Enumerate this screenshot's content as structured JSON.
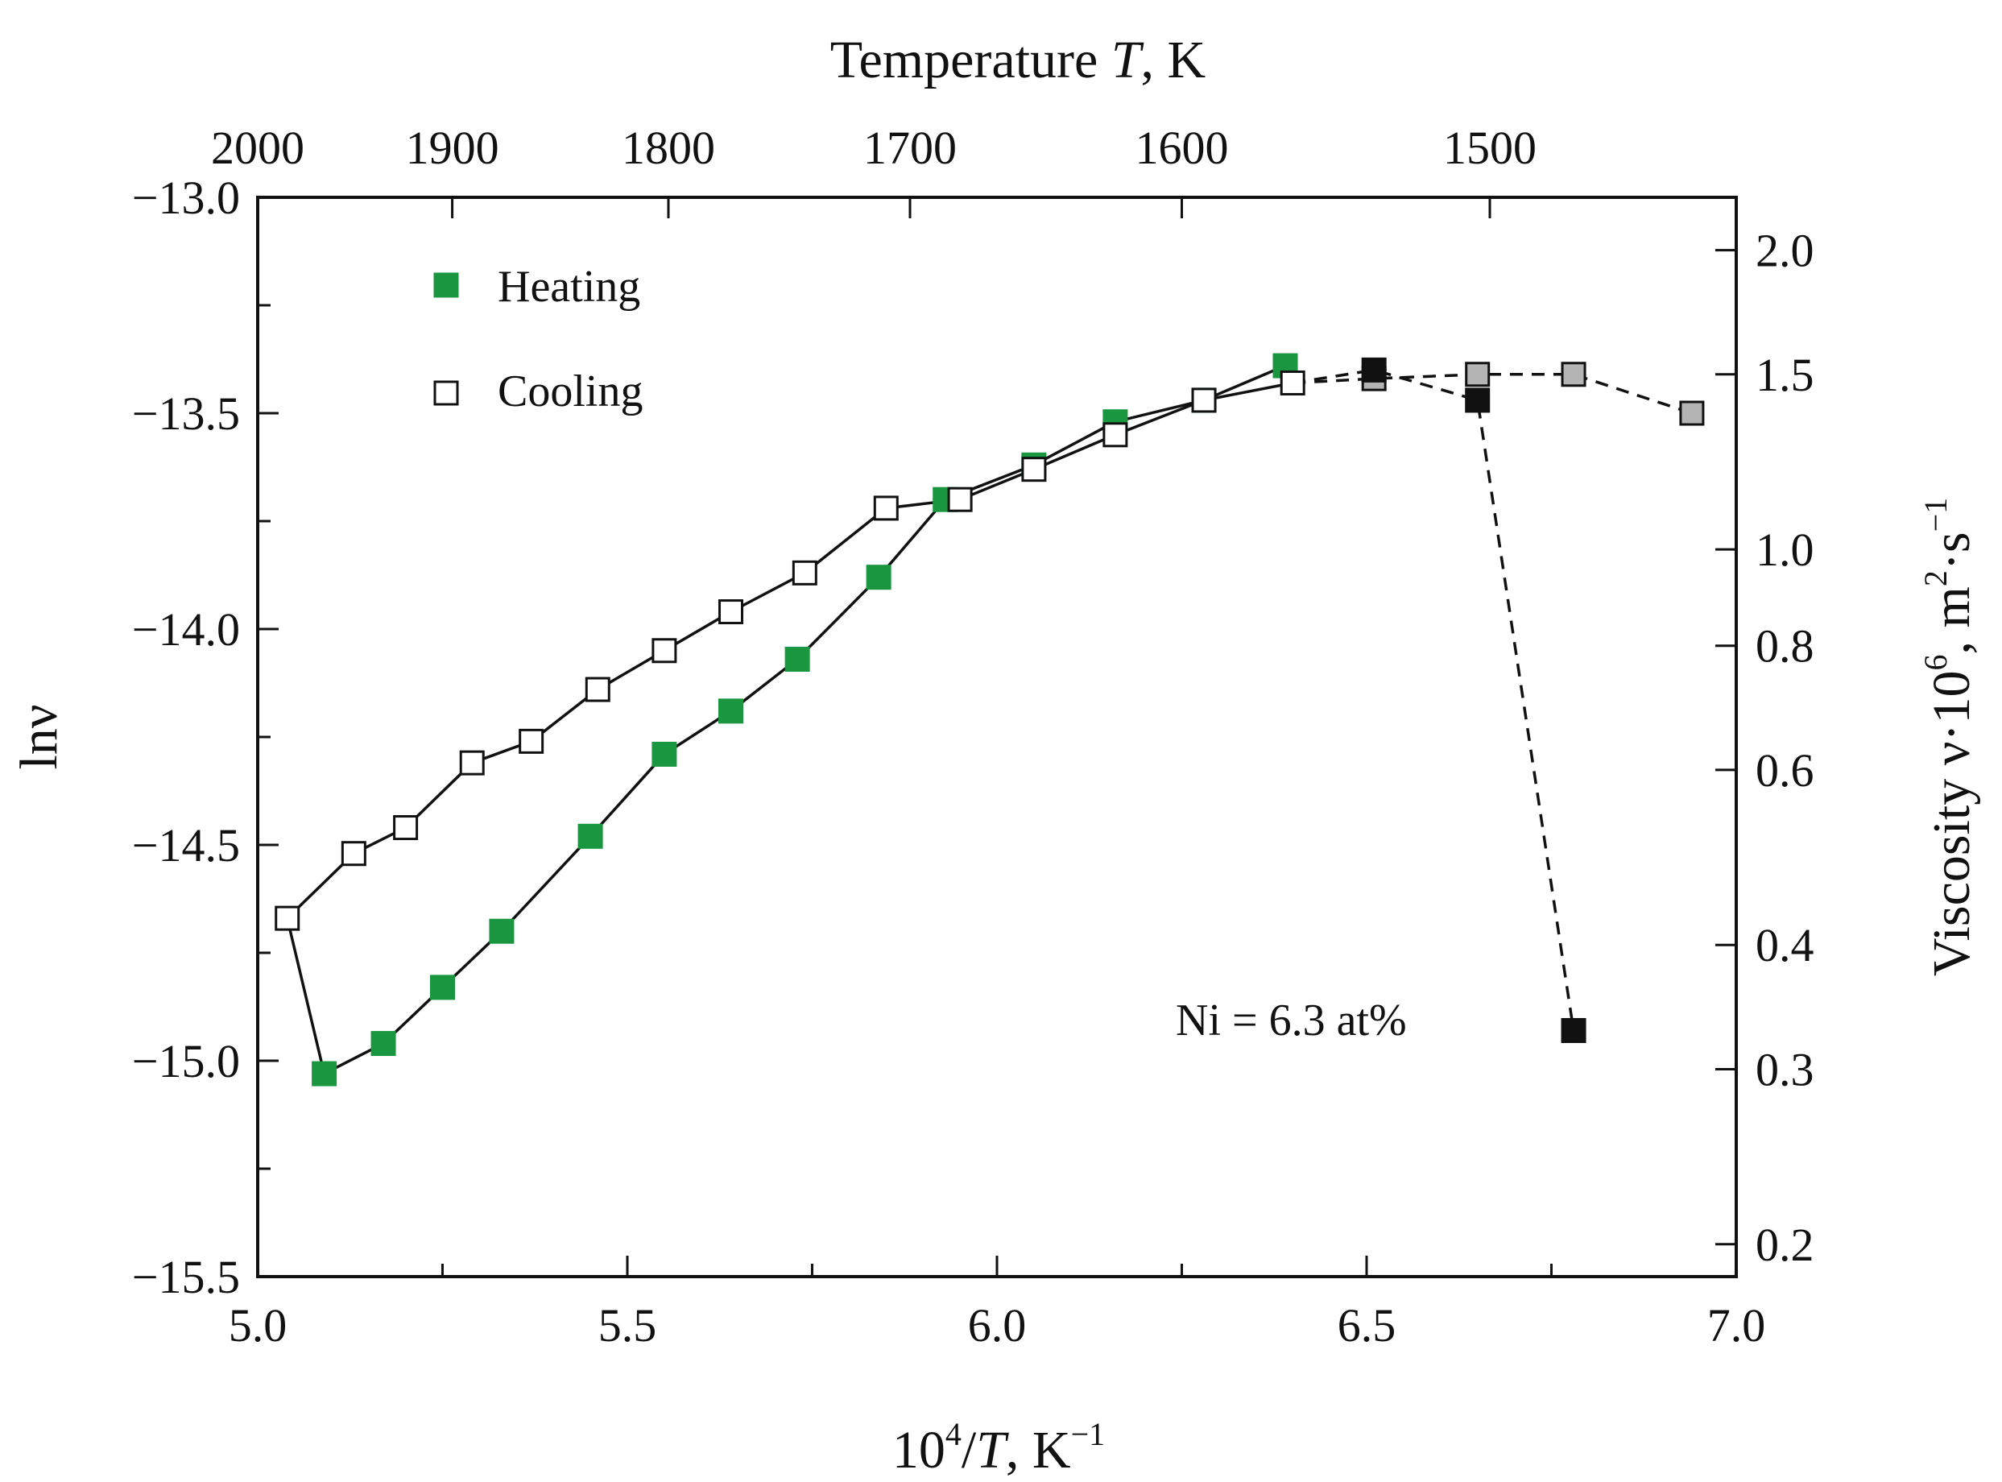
{
  "chart_data": {
    "type": "scatter",
    "title": "",
    "xlabel": {
      "base": "10",
      "sup": "4",
      "mid": "/",
      "italic": "T",
      "post": ", K",
      "sup2": "−1"
    },
    "ylabel": "lnν",
    "top_xlabel": {
      "pre": "Temperature ",
      "italic": "T",
      "post": ", K"
    },
    "right_ylabel": {
      "pre": "Viscosity ν·10",
      "sup1": "6",
      "mid": ", m",
      "sup2": "2",
      "mid2": "·s",
      "sup3": "−1"
    },
    "xlim": [
      5.0,
      7.0
    ],
    "ylim": [
      -15.5,
      -13.0
    ],
    "x_ticks": [
      "5.0",
      "5.5",
      "6.0",
      "6.5",
      "7.0"
    ],
    "y_ticks": [
      "−13.0",
      "−13.5",
      "−14.0",
      "−14.5",
      "−15.0",
      "−15.5"
    ],
    "top_ticks": [
      "2000",
      "1900",
      "1800",
      "1700",
      "1600",
      "1500"
    ],
    "right_ticks": [
      "2.0",
      "1.5",
      "1.0",
      "0.8",
      "0.6",
      "0.4",
      "0.3",
      "0.2"
    ],
    "grid": false,
    "legend_position": "top-left",
    "annotation": "Ni = 6.3 at%",
    "colors": {
      "heating": "#1a9641",
      "cooling": "#ffffff",
      "black": "#111111",
      "gray": "#b4b4b4"
    },
    "series": [
      {
        "name": "Heating",
        "marker": "filled-green",
        "x": [
          5.09,
          5.17,
          5.25,
          5.33,
          5.45,
          5.55,
          5.64,
          5.73,
          5.84,
          5.93,
          6.05,
          6.16,
          6.28,
          6.39
        ],
        "y": [
          -15.03,
          -14.96,
          -14.83,
          -14.7,
          -14.48,
          -14.29,
          -14.19,
          -14.07,
          -13.88,
          -13.7,
          -13.62,
          -13.52,
          -13.47,
          -13.39
        ]
      },
      {
        "name": "Cooling",
        "marker": "open",
        "x": [
          5.04,
          5.13,
          5.2,
          5.29,
          5.37,
          5.46,
          5.55,
          5.64,
          5.74,
          5.85,
          5.95,
          6.05,
          6.16,
          6.28,
          6.4
        ],
        "y": [
          -14.67,
          -14.52,
          -14.46,
          -14.31,
          -14.26,
          -14.14,
          -14.05,
          -13.96,
          -13.87,
          -13.72,
          -13.7,
          -13.63,
          -13.55,
          -13.47,
          -13.43
        ]
      },
      {
        "marker": "filled-black",
        "x": [
          6.51,
          6.65,
          6.78
        ],
        "y": [
          -13.4,
          -13.47,
          -14.93
        ]
      },
      {
        "marker": "filled-gray",
        "x": [
          6.51,
          6.65,
          6.78,
          6.94
        ],
        "y": [
          -13.42,
          -13.41,
          -13.41,
          -13.5
        ]
      }
    ]
  }
}
